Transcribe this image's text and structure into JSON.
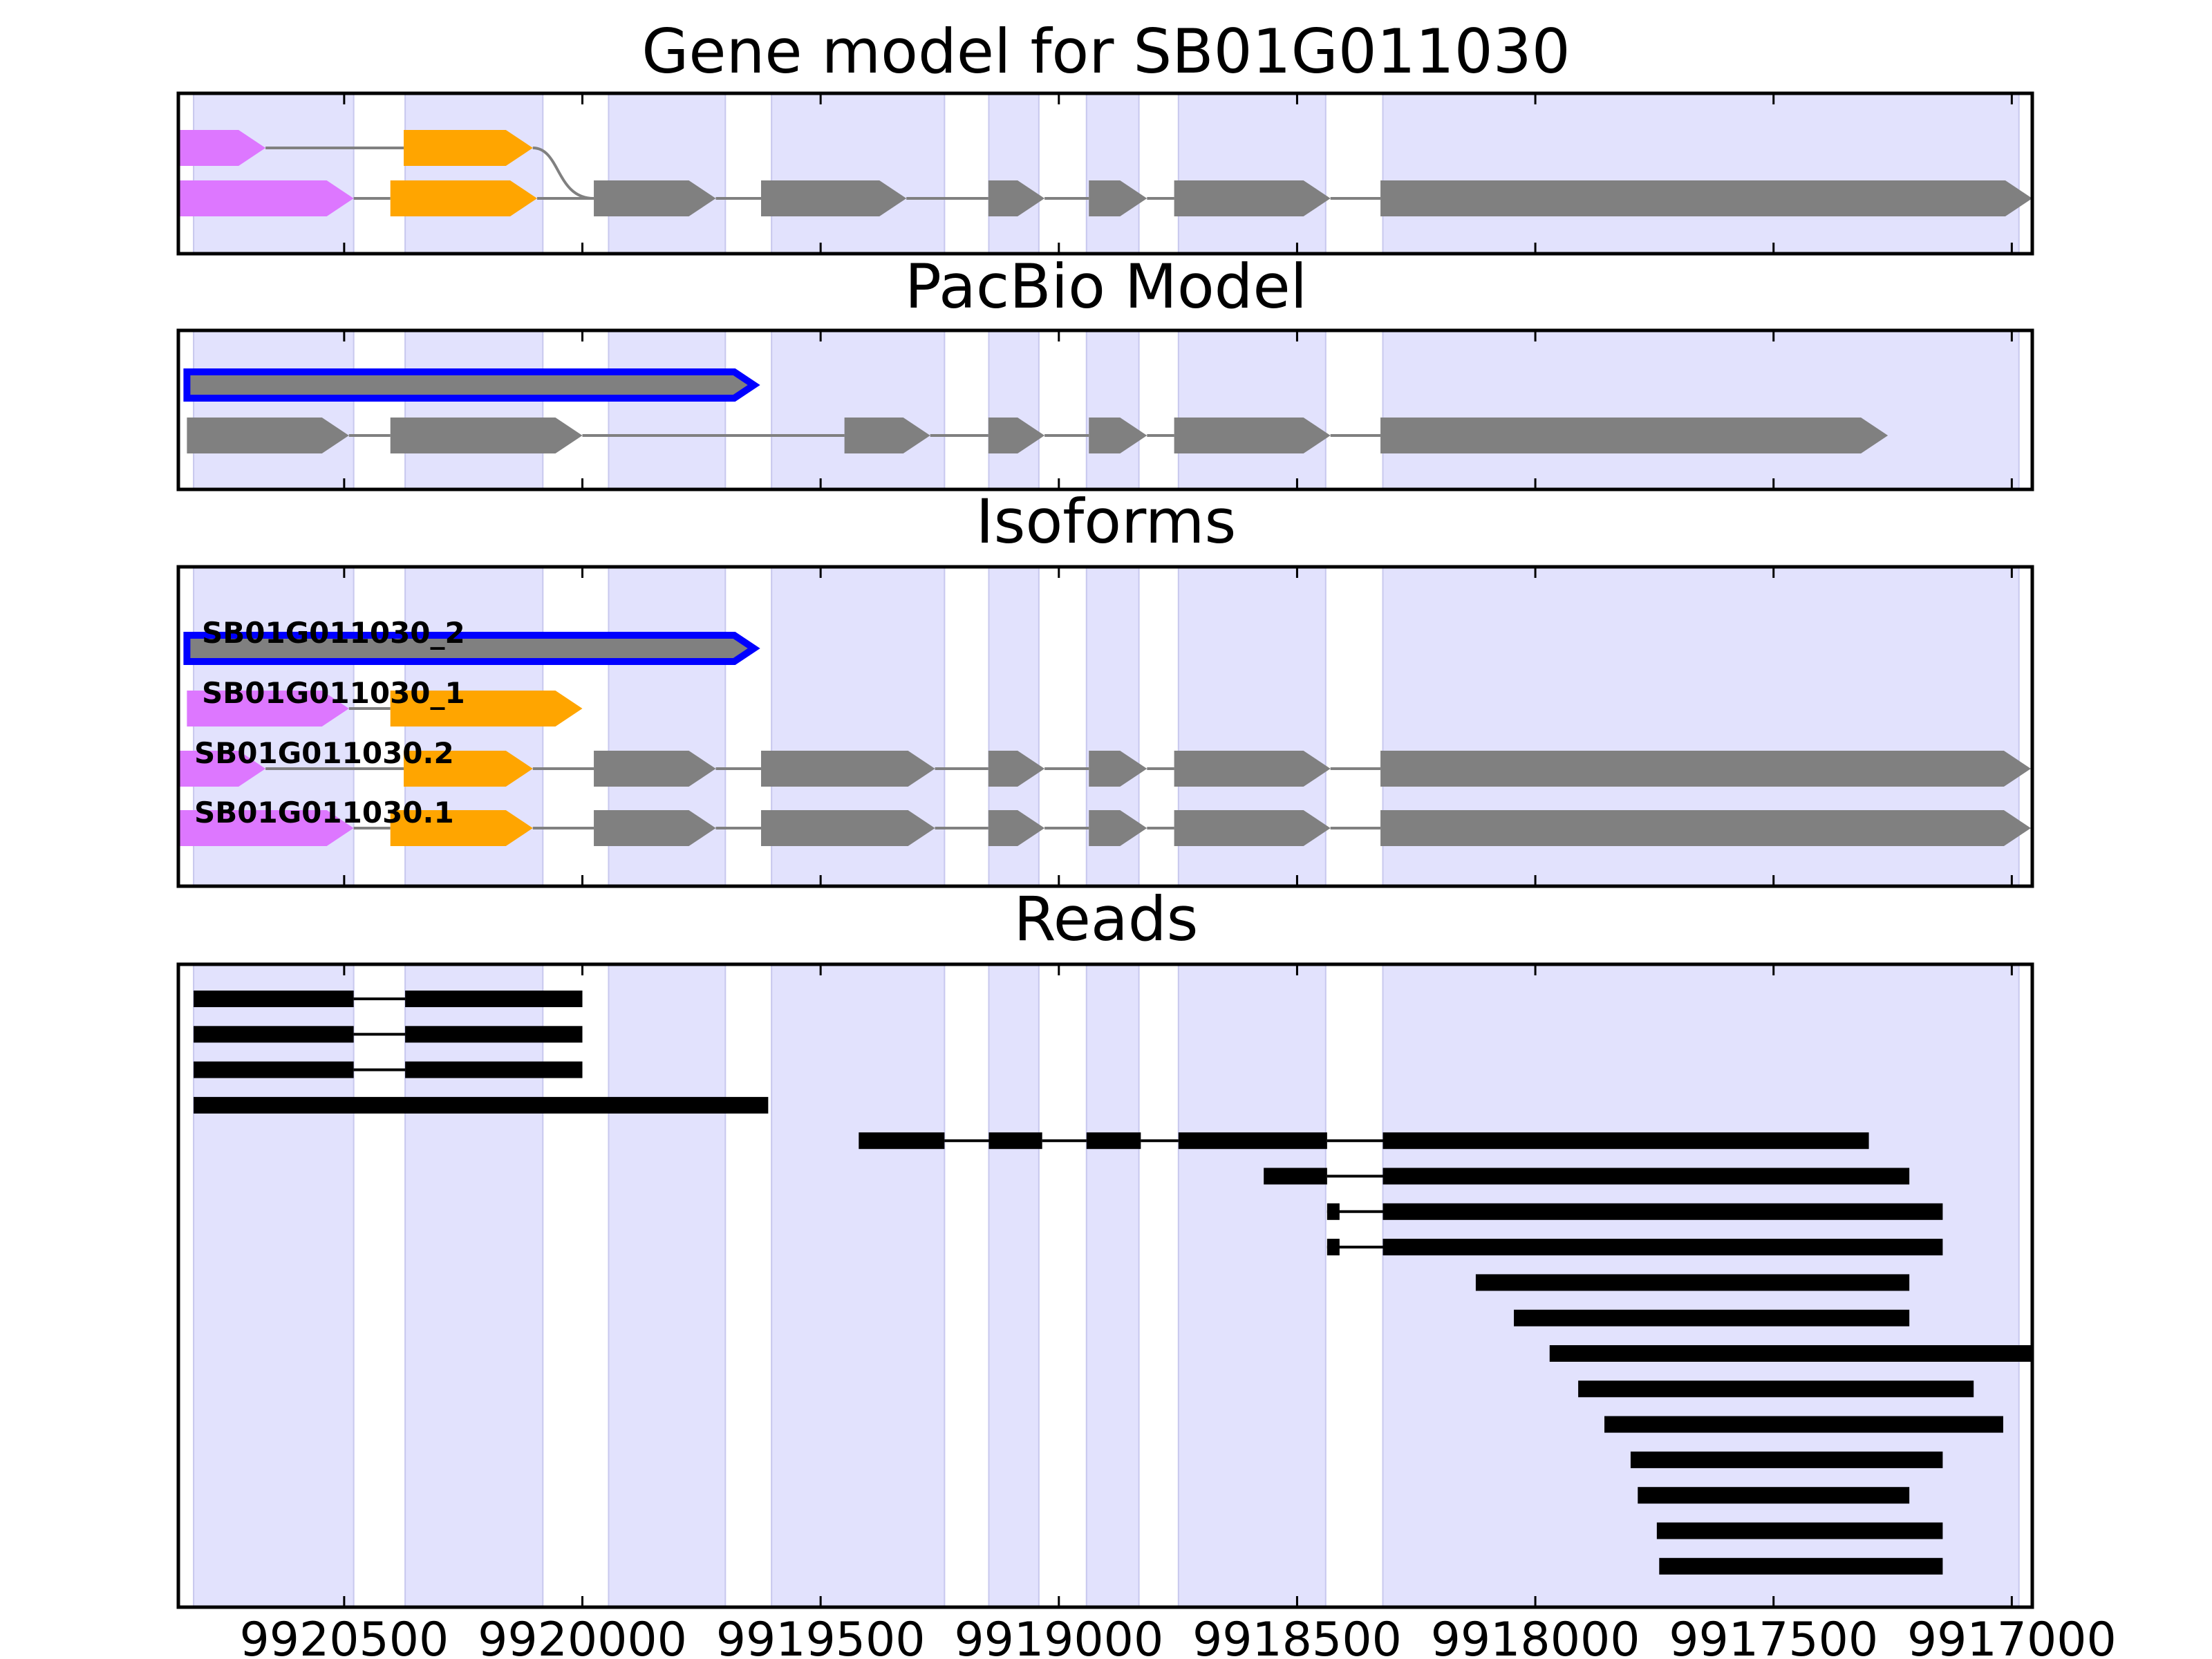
{
  "chart_data": {
    "type": "gene-track",
    "x_axis": {
      "direction": "reversed",
      "range": [
        9920848,
        9916957
      ],
      "ticks": [
        9920500,
        9920000,
        9919500,
        9919000,
        9918500,
        9918000,
        9917500,
        9917000
      ]
    },
    "colors": {
      "utr5": "#dd77ff",
      "cds_start": "#ffa500",
      "cds": "#808080",
      "shade": "#e2e2fd",
      "shade_edge": "#c8c8ee",
      "highlight": "#0000ff",
      "intron": "#808080",
      "read": "#000000"
    },
    "shaded_exons": [
      [
        9920816,
        9920480
      ],
      [
        9920372,
        9920083
      ],
      [
        9919945,
        9919700
      ],
      [
        9919603,
        9919240
      ],
      [
        9919147,
        9919042
      ],
      [
        9918942,
        9918832
      ],
      [
        9918749,
        9918440
      ],
      [
        9918320,
        9916985
      ]
    ],
    "panels": [
      {
        "title": "Gene model for SB01G011030",
        "tracks": [
          {
            "label": "",
            "highlight": false,
            "introns": "tubular",
            "segments": [
              {
                "start": 9920848,
                "end": 9920665,
                "kind": "utr5"
              },
              {
                "start": 9920375,
                "end": 9920104,
                "kind": "cds_start"
              }
            ]
          },
          {
            "label": "",
            "highlight": false,
            "introns": "line",
            "segments": [
              {
                "start": 9920848,
                "end": 9920480,
                "kind": "utr5"
              },
              {
                "start": 9920403,
                "end": 9920095,
                "kind": "cds_start"
              },
              {
                "start": 9919976,
                "end": 9919720,
                "kind": "cds"
              },
              {
                "start": 9919625,
                "end": 9919320,
                "kind": "cds"
              },
              {
                "start": 9919148,
                "end": 9919030,
                "kind": "cds"
              },
              {
                "start": 9918937,
                "end": 9918815,
                "kind": "cds"
              },
              {
                "start": 9918758,
                "end": 9918430,
                "kind": "cds"
              },
              {
                "start": 9918325,
                "end": 9916957,
                "kind": "cds"
              }
            ]
          }
        ]
      },
      {
        "title": "PacBio Model",
        "tracks": [
          {
            "label": "",
            "highlight": true,
            "introns": "none",
            "segments": [
              {
                "start": 9920830,
                "end": 9919640,
                "kind": "cds"
              }
            ]
          },
          {
            "label": "",
            "highlight": false,
            "introns": "line",
            "segments": [
              {
                "start": 9920830,
                "end": 9920490,
                "kind": "cds"
              },
              {
                "start": 9920403,
                "end": 9920000,
                "kind": "cds"
              },
              {
                "start": 9919450,
                "end": 9919270,
                "kind": "cds"
              },
              {
                "start": 9919148,
                "end": 9919030,
                "kind": "cds"
              },
              {
                "start": 9918937,
                "end": 9918815,
                "kind": "cds"
              },
              {
                "start": 9918758,
                "end": 9918430,
                "kind": "cds"
              },
              {
                "start": 9918325,
                "end": 9917260,
                "kind": "cds"
              }
            ]
          }
        ]
      },
      {
        "title": "Isoforms",
        "tracks": [
          {
            "label": "SB01G011030_2",
            "highlight": true,
            "introns": "none",
            "segments": [
              {
                "start": 9920830,
                "end": 9919640,
                "kind": "cds"
              }
            ]
          },
          {
            "label": "SB01G011030_1",
            "highlight": false,
            "introns": "line",
            "segments": [
              {
                "start": 9920830,
                "end": 9920490,
                "kind": "utr5"
              },
              {
                "start": 9920403,
                "end": 9920000,
                "kind": "cds_start"
              }
            ]
          },
          {
            "label": "SB01G011030.2",
            "highlight": false,
            "introns": "line",
            "segments": [
              {
                "start": 9920848,
                "end": 9920665,
                "kind": "utr5"
              },
              {
                "start": 9920375,
                "end": 9920104,
                "kind": "cds_start"
              },
              {
                "start": 9919976,
                "end": 9919720,
                "kind": "cds"
              },
              {
                "start": 9919625,
                "end": 9919260,
                "kind": "cds"
              },
              {
                "start": 9919148,
                "end": 9919030,
                "kind": "cds"
              },
              {
                "start": 9918937,
                "end": 9918815,
                "kind": "cds"
              },
              {
                "start": 9918758,
                "end": 9918430,
                "kind": "cds"
              },
              {
                "start": 9918325,
                "end": 9916960,
                "kind": "cds"
              }
            ]
          },
          {
            "label": "SB01G011030.1",
            "highlight": false,
            "introns": "line",
            "segments": [
              {
                "start": 9920848,
                "end": 9920480,
                "kind": "utr5"
              },
              {
                "start": 9920403,
                "end": 9920104,
                "kind": "cds_start"
              },
              {
                "start": 9919976,
                "end": 9919720,
                "kind": "cds"
              },
              {
                "start": 9919625,
                "end": 9919260,
                "kind": "cds"
              },
              {
                "start": 9919148,
                "end": 9919030,
                "kind": "cds"
              },
              {
                "start": 9918937,
                "end": 9918815,
                "kind": "cds"
              },
              {
                "start": 9918758,
                "end": 9918430,
                "kind": "cds"
              },
              {
                "start": 9918325,
                "end": 9916960,
                "kind": "cds"
              }
            ]
          }
        ]
      },
      {
        "title": "Reads",
        "reads": [
          [
            [
              9920816,
              9920480
            ],
            [
              9920372,
              9920000
            ]
          ],
          [
            [
              9920816,
              9920480
            ],
            [
              9920372,
              9920000
            ]
          ],
          [
            [
              9920816,
              9920480
            ],
            [
              9920372,
              9920000
            ]
          ],
          [
            [
              9920816,
              9919610
            ]
          ],
          [
            [
              9919420,
              9919240
            ],
            [
              9919147,
              9919035
            ],
            [
              9918942,
              9918828
            ],
            [
              9918749,
              9918437
            ],
            [
              9918320,
              9917300
            ]
          ],
          [
            [
              9918570,
              9918437
            ],
            [
              9918320,
              9917215
            ]
          ],
          [
            [
              9918425,
              9918437
            ],
            [
              9918320,
              9917145
            ]
          ],
          [
            [
              9918425,
              9918437
            ],
            [
              9918320,
              9917145
            ]
          ],
          [
            [
              9918125,
              9917215
            ]
          ],
          [
            [
              9918045,
              9917215
            ]
          ],
          [
            [
              9917970,
              9916960
            ]
          ],
          [
            [
              9917910,
              9917080
            ]
          ],
          [
            [
              9917855,
              9917018
            ]
          ],
          [
            [
              9917800,
              9917145
            ]
          ],
          [
            [
              9917785,
              9917215
            ]
          ],
          [
            [
              9917745,
              9917145
            ]
          ],
          [
            [
              9917740,
              9917145
            ]
          ]
        ]
      }
    ]
  }
}
